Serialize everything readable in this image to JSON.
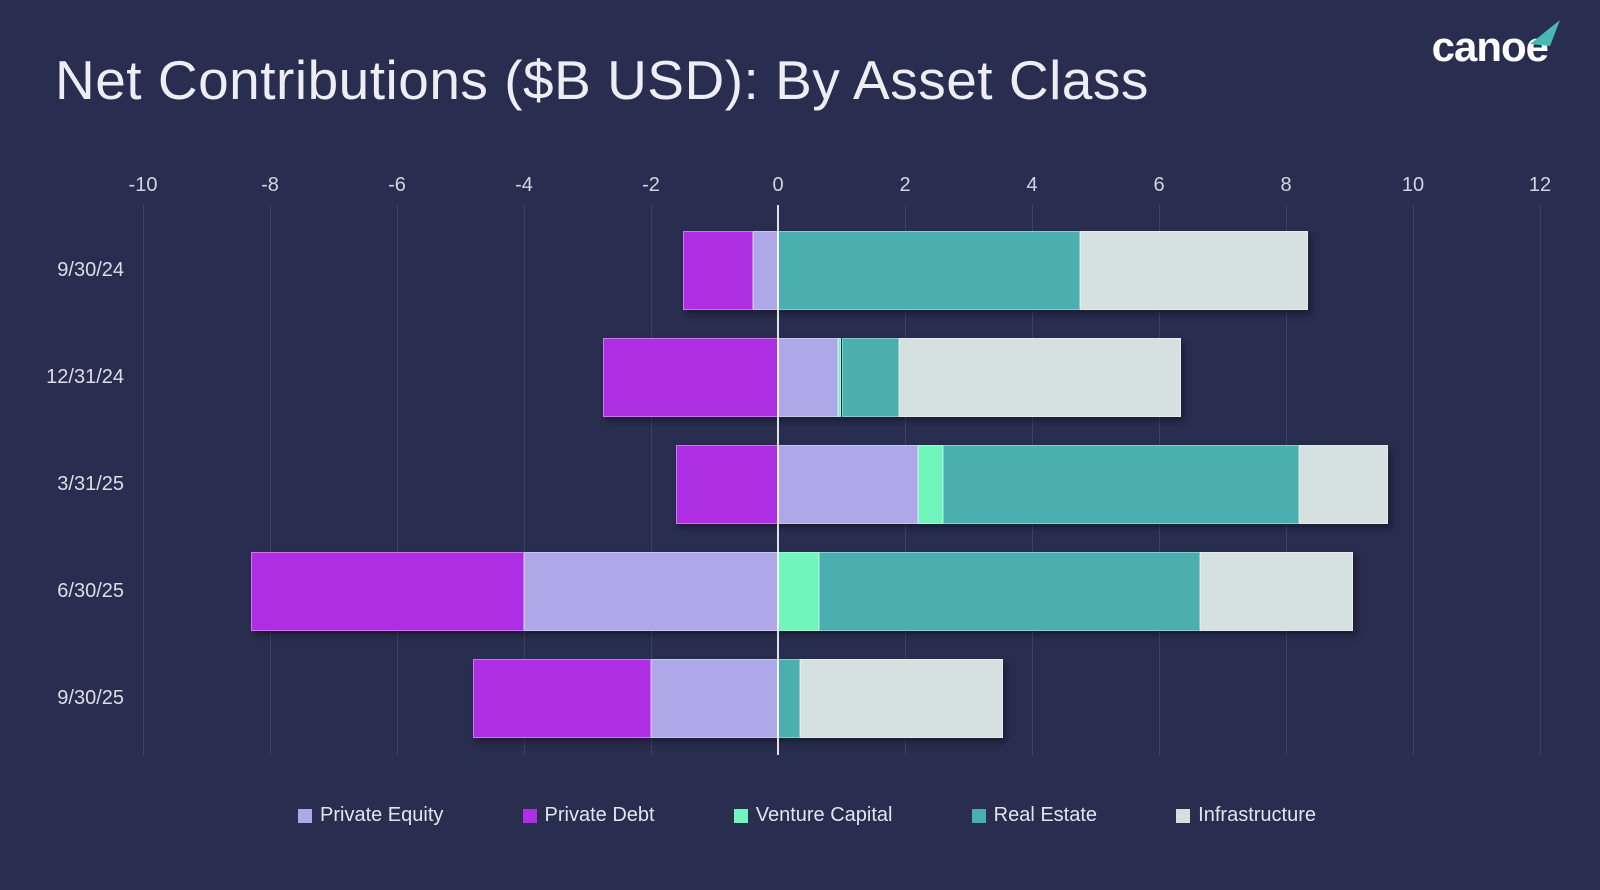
{
  "header": {
    "title": "Net Contributions ($B USD): By Asset Class",
    "logo_text": "canoe"
  },
  "chart_data": {
    "type": "bar",
    "orientation": "horizontal",
    "stacked": true,
    "title": "Net Contributions ($B USD): By Asset Class",
    "xlabel": "",
    "ylabel": "",
    "categories": [
      "9/30/24",
      "12/31/24",
      "3/31/25",
      "6/30/25",
      "9/30/25"
    ],
    "series": [
      {
        "name": "Private Equity",
        "color": "#aea7e8",
        "values": [
          -0.4,
          0.95,
          2.2,
          -4.0,
          -2.0
        ]
      },
      {
        "name": "Private Debt",
        "color": "#ae2fe3",
        "values": [
          -1.1,
          -2.75,
          -1.6,
          -4.3,
          -2.8
        ]
      },
      {
        "name": "Venture Capital",
        "color": "#70f6bd",
        "values": [
          0.0,
          0.05,
          0.4,
          0.65,
          0.0
        ]
      },
      {
        "name": "Real Estate",
        "color": "#4bafb0",
        "values": [
          4.75,
          0.9,
          5.6,
          6.0,
          0.35
        ]
      },
      {
        "name": "Infrastructure",
        "color": "#d5e0e1",
        "values": [
          3.6,
          4.45,
          1.4,
          2.4,
          3.2
        ]
      }
    ],
    "xlim": [
      -10,
      12
    ],
    "xticks": [
      -10,
      -8,
      -6,
      -4,
      -2,
      0,
      2,
      4,
      6,
      8,
      10,
      12
    ],
    "grid": "vertical",
    "zero_line": true,
    "legend_position": "bottom"
  },
  "colors": {
    "background": "#292d4f",
    "text": "#e3e5ec",
    "grid": "rgba(255,255,255,0.10)",
    "zero_line": "rgba(255,255,255,0.85)",
    "logo_accent": "#47b9b2"
  }
}
